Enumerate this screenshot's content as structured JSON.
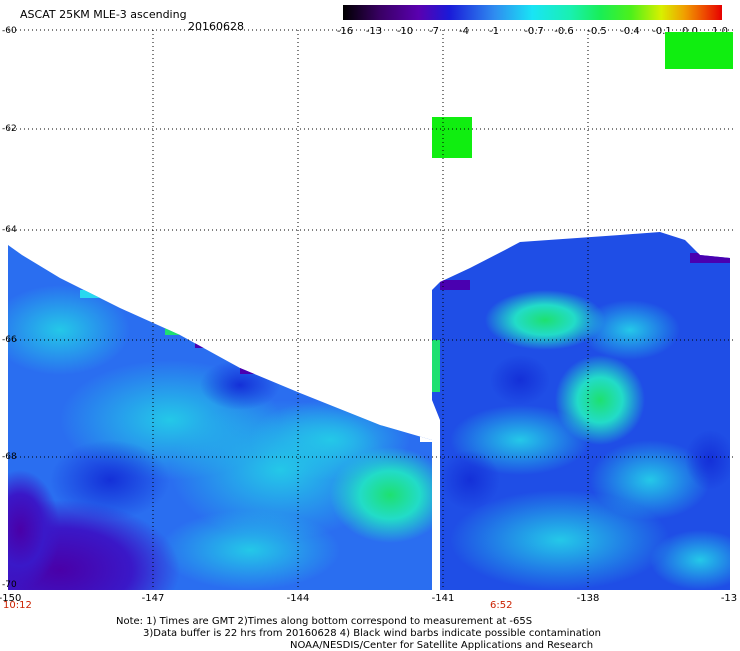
{
  "header": {
    "title": "ASCAT 25KM MLE-3 ascending",
    "date": "20160628"
  },
  "colorbar": {
    "labels": [
      "-16",
      "-13",
      "-10",
      "-7",
      "-4",
      "-1",
      "-0.7",
      "-0.6",
      "-0.5",
      "-0.4",
      "-0.1",
      "0.0",
      "1.0"
    ],
    "colors": [
      "#000000",
      "#3a0066",
      "#5a00b0",
      "#1a1ad8",
      "#2f8cf0",
      "#19e4f5",
      "#19f0b0",
      "#19ee55",
      "#4df01a",
      "#d8f000",
      "#f0a000",
      "#ee5000",
      "#e60000"
    ]
  },
  "map": {
    "y_labels": [
      "-60",
      "-62",
      "-64",
      "-66",
      "-68",
      "-70"
    ],
    "x_labels": [
      "-150",
      "-147",
      "-144",
      "-141",
      "-138",
      "-13"
    ],
    "times": [
      "10:12",
      "6:52"
    ]
  },
  "notes": [
    "Note: 1) Times are GMT 2)Times along bottom correspond to measurement at -65S",
    "3)Data buffer is 22 hrs from 20160628 4) Black wind barbs indicate possible contamination",
    "NOAA/NESDIS/Center for Satellite Applications and Research"
  ]
}
